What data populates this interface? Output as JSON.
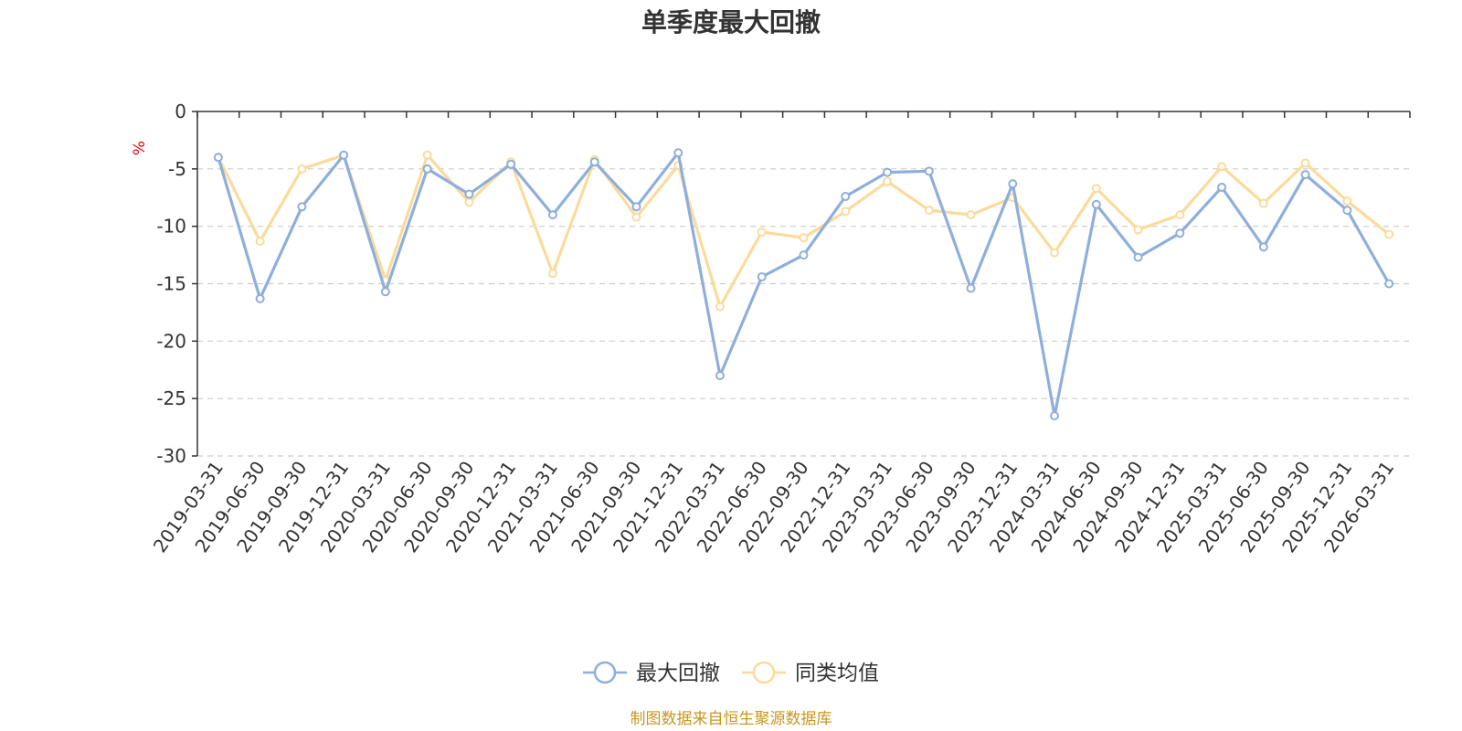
{
  "chart_data": {
    "type": "line",
    "title": "单季度最大回撤",
    "y_unit": "%",
    "ylim": [
      -30,
      0
    ],
    "y_ticks": [
      0,
      -5,
      -10,
      -15,
      -20,
      -25,
      -30
    ],
    "grid": true,
    "legend_placement": "bottom-center",
    "categories": [
      "2019-03-31",
      "2019-06-30",
      "2019-09-30",
      "2019-12-31",
      "2020-03-31",
      "2020-06-30",
      "2020-09-30",
      "2020-12-31",
      "2021-03-31",
      "2021-06-30",
      "2021-09-30",
      "2021-12-31",
      "2022-03-31",
      "2022-06-30",
      "2022-09-30",
      "2022-12-31",
      "2023-03-31",
      "2023-06-30",
      "2023-09-30",
      "2023-12-31",
      "2024-03-31",
      "2024-06-30",
      "2024-09-30",
      "2024-12-31",
      "2025-03-31",
      "2025-06-30",
      "2025-09-30",
      "2025-12-31",
      "2026-03-31"
    ],
    "series": [
      {
        "name": "最大回撤",
        "color": "#8eaedc",
        "values": [
          -4.0,
          -16.3,
          -8.3,
          -3.8,
          -15.7,
          -5.0,
          -7.2,
          -4.6,
          -9.0,
          -4.4,
          -8.3,
          -3.6,
          -23.0,
          -14.4,
          -12.5,
          -7.4,
          -5.3,
          -5.2,
          -15.4,
          -6.3,
          -26.5,
          -8.1,
          -12.7,
          -10.6,
          -6.6,
          -11.8,
          -5.5,
          -8.6,
          -15.0
        ]
      },
      {
        "name": "同类均值",
        "color": "#fbdb9c",
        "values": [
          -4.0,
          -11.3,
          -5.0,
          -3.8,
          -14.7,
          -3.8,
          -7.9,
          -4.4,
          -14.1,
          -4.2,
          -9.2,
          -4.7,
          -17.0,
          -10.5,
          -11.0,
          -8.7,
          -6.1,
          -8.6,
          -9.0,
          -7.5,
          -12.3,
          -6.7,
          -10.3,
          -9.0,
          -4.8,
          -8.0,
          -4.5,
          -7.8,
          -10.7
        ]
      }
    ]
  },
  "footer": {
    "source": "制图数据来自恒生聚源数据库"
  }
}
